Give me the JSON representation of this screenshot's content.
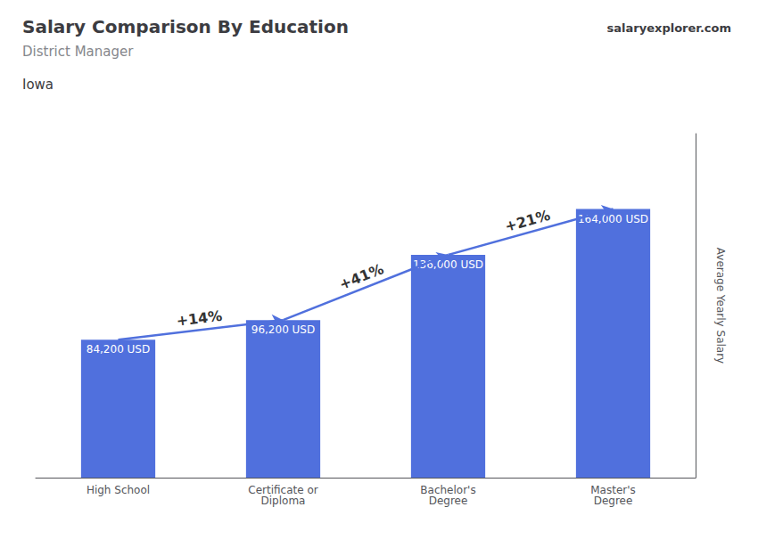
{
  "chart_data": {
    "type": "bar",
    "title": "Salary Comparison By Education",
    "subtitle": "District Manager",
    "annotations": {
      "location": "Iowa",
      "source": "salaryexplorer.com",
      "changes": [
        "+14%",
        "+41%",
        "+21%"
      ]
    },
    "categories": [
      "High School",
      "Certificate or\nDiploma",
      "Bachelor's\nDegree",
      "Master's\nDegree"
    ],
    "values": [
      84200,
      96200,
      136000,
      164000
    ],
    "value_labels": [
      "84,200 USD",
      "96,200 USD",
      "136,000 USD",
      "164,000 USD"
    ],
    "data_labels": true,
    "ylabel": "Average Yearly Salary",
    "ylim": [
      0,
      210000
    ],
    "grid": false,
    "tick_labels": "x"
  }
}
